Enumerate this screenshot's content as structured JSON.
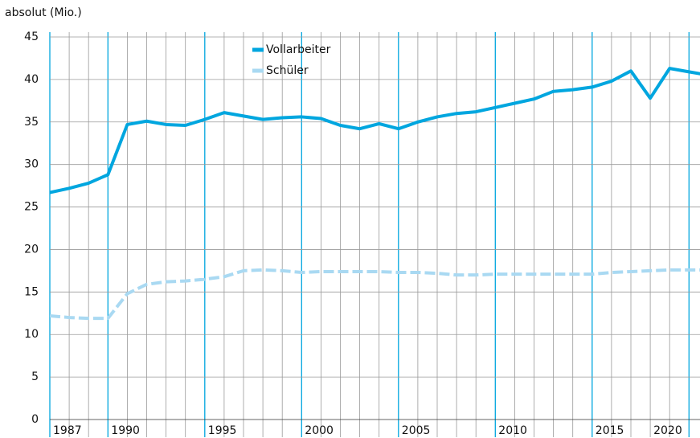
{
  "chart_data": {
    "type": "line",
    "y_axis_label": "absolut (Mio.)",
    "categories": [
      "1987",
      null,
      null,
      "1990",
      null,
      null,
      null,
      null,
      "1995",
      null,
      null,
      null,
      null,
      "2000",
      null,
      null,
      null,
      null,
      "2005",
      null,
      null,
      null,
      null,
      "2010",
      null,
      null,
      null,
      null,
      "2015",
      null,
      null,
      "2020",
      null,
      null,
      null
    ],
    "series": [
      {
        "name": "Vollarbeiter",
        "color": "#00a6df",
        "dashed": false,
        "values": [
          26.7,
          27.2,
          27.8,
          28.8,
          34.7,
          35.1,
          34.7,
          34.6,
          35.3,
          36.1,
          35.7,
          35.3,
          35.5,
          35.6,
          35.4,
          34.6,
          34.2,
          34.8,
          34.2,
          35.0,
          35.6,
          36.0,
          36.2,
          36.7,
          37.2,
          37.7,
          38.6,
          38.8,
          39.1,
          39.8,
          41.0,
          37.8,
          41.3,
          40.9,
          40.5
        ]
      },
      {
        "name": "Schüler",
        "color": "#a9d9f2",
        "dashed": true,
        "values": [
          12.2,
          12.0,
          11.9,
          11.9,
          14.8,
          15.9,
          16.2,
          16.3,
          16.5,
          16.8,
          17.5,
          17.6,
          17.5,
          17.3,
          17.4,
          17.4,
          17.4,
          17.4,
          17.3,
          17.3,
          17.2,
          17.0,
          17.0,
          17.1,
          17.1,
          17.1,
          17.1,
          17.1,
          17.1,
          17.3,
          17.4,
          17.5,
          17.6,
          17.6,
          17.6
        ]
      }
    ],
    "ylim": [
      0,
      45
    ],
    "yticks": [
      0,
      5,
      10,
      15,
      20,
      25,
      30,
      35,
      40,
      45
    ],
    "grid": true,
    "legend": "top"
  }
}
